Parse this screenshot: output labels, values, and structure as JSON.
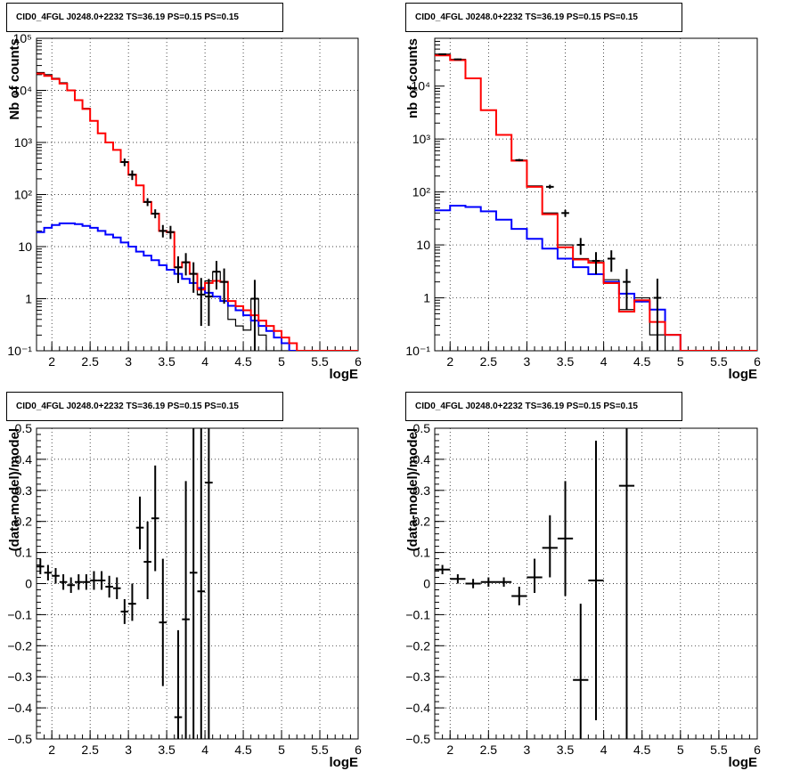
{
  "chart_data": [
    {
      "type": "line",
      "title": "CID0_4FGL J0248.0+2232 TS=36.19 PS=0.15 PS=0.15",
      "xlabel": "logE",
      "ylabel": "Nb of counts",
      "xlim": [
        1.8,
        6.0
      ],
      "ylim": [
        0.1,
        100000
      ],
      "yscale": "log",
      "grid": true,
      "x_ticks": [
        "2",
        "2.5",
        "3",
        "3.5",
        "4",
        "4.5",
        "5",
        "5.5",
        "6"
      ],
      "y_ticks": [
        "10⁻¹",
        "1",
        "10",
        "10²",
        "10³",
        "10⁴",
        "10⁵"
      ],
      "bin_edges": [
        1.8,
        1.9,
        2.0,
        2.1,
        2.2,
        2.3,
        2.4,
        2.5,
        2.6,
        2.7,
        2.8,
        2.9,
        3.0,
        3.1,
        3.2,
        3.3,
        3.4,
        3.5,
        3.6,
        3.7,
        3.8,
        3.9,
        4.0,
        4.1,
        4.2,
        4.3,
        4.4,
        4.5,
        4.6,
        4.7,
        4.8,
        4.9,
        5.0,
        5.1,
        5.2,
        5.3,
        5.4,
        5.5,
        5.6,
        5.7,
        5.8,
        5.9,
        6.0
      ],
      "series": [
        {
          "color": "#000000",
          "style": "histogram",
          "values": [
            22000,
            20000,
            17000,
            14000,
            10000,
            6500,
            4500,
            2600,
            1500,
            1000,
            720,
            420,
            240,
            150,
            72,
            43,
            20,
            19,
            4,
            5,
            3,
            1.2,
            2.2,
            3.3,
            2.1,
            0.4,
            0.3,
            0.25,
            1.0,
            0.2,
            0.1,
            0.1,
            0.1,
            0.1,
            0.1,
            0.1,
            0.1,
            0.1,
            0.1,
            0.1,
            0.1,
            0.1
          ]
        },
        {
          "color": "#0000ff",
          "style": "histogram",
          "values": [
            19,
            23,
            26,
            28,
            28,
            27,
            25,
            23,
            20,
            17,
            15,
            12,
            10,
            8,
            6.7,
            5.5,
            4.4,
            3.6,
            3.0,
            2.4,
            2.0,
            1.6,
            1.3,
            1.1,
            0.9,
            0.73,
            0.6,
            0.48,
            0.38,
            0.3,
            0.24,
            0.18,
            0.14,
            0.1,
            0.1,
            0.1,
            0.1,
            0.1,
            0.1,
            0.1,
            0.1,
            0.1
          ]
        },
        {
          "color": "#ff0000",
          "style": "histogram",
          "values": [
            21000,
            19000,
            16500,
            13500,
            10000,
            6500,
            4400,
            2600,
            1500,
            1000,
            720,
            420,
            240,
            150,
            72,
            43,
            20,
            19,
            4,
            5,
            3,
            1.5,
            2.0,
            2.2,
            2.1,
            0.9,
            0.72,
            0.6,
            0.48,
            0.38,
            0.3,
            0.24,
            0.18,
            0.14,
            0.1,
            0.1,
            0.1,
            0.1,
            0.1,
            0.1,
            0.1,
            0.1
          ]
        }
      ],
      "points": [
        {
          "x": 2.95,
          "y": 420,
          "lo": 350,
          "hi": 490
        },
        {
          "x": 3.05,
          "y": 240,
          "lo": 190,
          "hi": 290
        },
        {
          "x": 3.25,
          "y": 72,
          "lo": 60,
          "hi": 85
        },
        {
          "x": 3.35,
          "y": 43,
          "lo": 35,
          "hi": 52
        },
        {
          "x": 3.45,
          "y": 20,
          "lo": 15,
          "hi": 26
        },
        {
          "x": 3.55,
          "y": 19,
          "lo": 14,
          "hi": 25
        },
        {
          "x": 3.65,
          "y": 4,
          "lo": 2,
          "hi": 6.5
        },
        {
          "x": 3.75,
          "y": 5,
          "lo": 2.8,
          "hi": 7.5
        },
        {
          "x": 3.85,
          "y": 3,
          "lo": 1.3,
          "hi": 5
        },
        {
          "x": 3.95,
          "y": 1.2,
          "lo": 0.3,
          "hi": 2.5
        },
        {
          "x": 4.05,
          "y": 1.1,
          "lo": 0.3,
          "hi": 2.4
        },
        {
          "x": 4.15,
          "y": 3.3,
          "lo": 1.5,
          "hi": 5.3
        },
        {
          "x": 4.25,
          "y": 2.1,
          "lo": 0.8,
          "hi": 3.8
        },
        {
          "x": 4.65,
          "y": 1.0,
          "lo": 0.1,
          "hi": 2.3
        }
      ]
    },
    {
      "type": "line",
      "title": "CID0_4FGL J0248.0+2232 TS=36.19 PS=0.15 PS=0.15",
      "xlabel": "logE",
      "ylabel": "nb of counts",
      "xlim": [
        1.8,
        6.0
      ],
      "ylim": [
        0.1,
        80000
      ],
      "yscale": "log",
      "grid": true,
      "x_ticks": [
        "2",
        "2.5",
        "3",
        "3.5",
        "4",
        "4.5",
        "5",
        "5.5",
        "6"
      ],
      "y_ticks": [
        "10⁻¹",
        "1",
        "10",
        "10²",
        "10³",
        "10⁴"
      ],
      "bin_edges": [
        1.8,
        2.0,
        2.2,
        2.4,
        2.6,
        2.8,
        3.0,
        3.2,
        3.4,
        3.6,
        3.8,
        4.0,
        4.2,
        4.4,
        4.6,
        4.8,
        5.0,
        5.2,
        5.4,
        5.6,
        5.8,
        6.0
      ],
      "series": [
        {
          "color": "#000000",
          "style": "histogram",
          "values": [
            40000,
            32000,
            14000,
            3500,
            1200,
            400,
            130,
            40,
            10,
            5.5,
            5,
            2.2,
            0.6,
            1.0,
            0.2,
            0.1,
            0.1,
            0.1,
            0.1,
            0.1,
            0.1
          ]
        },
        {
          "color": "#0000ff",
          "style": "histogram",
          "values": [
            45,
            55,
            52,
            43,
            30,
            20,
            13,
            8.5,
            5.5,
            3.8,
            2.8,
            2,
            1.2,
            0.85,
            0.6,
            0.2,
            0.1,
            0.1,
            0.1,
            0.1,
            0.1
          ]
        },
        {
          "color": "#ff0000",
          "style": "histogram",
          "values": [
            38000,
            31000,
            14000,
            3500,
            1200,
            390,
            125,
            38,
            9,
            5.3,
            4.6,
            1.9,
            0.55,
            0.9,
            0.35,
            0.2,
            0.1,
            0.1,
            0.1,
            0.1,
            0.1
          ]
        }
      ],
      "points": [
        {
          "x": 1.9,
          "y": 40000,
          "lo": 39000,
          "hi": 41000
        },
        {
          "x": 2.1,
          "y": 32000,
          "lo": 31000,
          "hi": 33000
        },
        {
          "x": 2.9,
          "y": 400,
          "lo": 380,
          "hi": 420
        },
        {
          "x": 3.3,
          "y": 125,
          "lo": 115,
          "hi": 137
        },
        {
          "x": 3.5,
          "y": 40,
          "lo": 34,
          "hi": 46
        },
        {
          "x": 3.7,
          "y": 10,
          "lo": 6.5,
          "hi": 13.5
        },
        {
          "x": 3.9,
          "y": 5,
          "lo": 2.8,
          "hi": 7.3
        },
        {
          "x": 4.1,
          "y": 5.5,
          "lo": 3.1,
          "hi": 7.9
        },
        {
          "x": 4.3,
          "y": 2,
          "lo": 0.6,
          "hi": 3.5
        },
        {
          "x": 4.7,
          "y": 1.0,
          "lo": 0.1,
          "hi": 2.3
        }
      ]
    },
    {
      "type": "scatter",
      "title": "CID0_4FGL J0248.0+2232 TS=36.19 PS=0.15 PS=0.15",
      "xlabel": "logE",
      "ylabel": "(data-model)/model",
      "xlim": [
        1.8,
        6.0
      ],
      "ylim": [
        -0.5,
        0.5
      ],
      "grid": true,
      "x_ticks": [
        "2",
        "2.5",
        "3",
        "3.5",
        "4",
        "4.5",
        "5",
        "5.5",
        "6"
      ],
      "y_ticks": [
        "−0.5",
        "−0.4",
        "−0.3",
        "−0.2",
        "−0.1",
        "0",
        "0.1",
        "0.2",
        "0.3",
        "0.4",
        "0.5"
      ],
      "x_err_half": 0.05,
      "points": [
        {
          "x": 1.85,
          "y": 0.055,
          "lo": 0.03,
          "hi": 0.08
        },
        {
          "x": 1.95,
          "y": 0.035,
          "lo": 0.01,
          "hi": 0.06
        },
        {
          "x": 2.05,
          "y": 0.025,
          "lo": 0.0,
          "hi": 0.05
        },
        {
          "x": 2.15,
          "y": 0.005,
          "lo": -0.02,
          "hi": 0.03
        },
        {
          "x": 2.25,
          "y": -0.005,
          "lo": -0.03,
          "hi": 0.02
        },
        {
          "x": 2.35,
          "y": 0.005,
          "lo": -0.02,
          "hi": 0.03
        },
        {
          "x": 2.45,
          "y": 0.005,
          "lo": -0.02,
          "hi": 0.03
        },
        {
          "x": 2.55,
          "y": 0.01,
          "lo": -0.02,
          "hi": 0.04
        },
        {
          "x": 2.65,
          "y": 0.01,
          "lo": -0.02,
          "hi": 0.04
        },
        {
          "x": 2.75,
          "y": -0.01,
          "lo": -0.045,
          "hi": 0.025
        },
        {
          "x": 2.85,
          "y": -0.015,
          "lo": -0.05,
          "hi": 0.02
        },
        {
          "x": 2.95,
          "y": -0.09,
          "lo": -0.13,
          "hi": -0.05
        },
        {
          "x": 3.05,
          "y": -0.065,
          "lo": -0.12,
          "hi": 0.0
        },
        {
          "x": 3.15,
          "y": 0.18,
          "lo": 0.11,
          "hi": 0.28
        },
        {
          "x": 3.25,
          "y": 0.07,
          "lo": -0.05,
          "hi": 0.2
        },
        {
          "x": 3.35,
          "y": 0.21,
          "lo": 0.04,
          "hi": 0.38
        },
        {
          "x": 3.45,
          "y": -0.125,
          "lo": -0.33,
          "hi": 0.08
        },
        {
          "x": 3.65,
          "y": -0.43,
          "lo": -0.5,
          "hi": -0.15
        },
        {
          "x": 3.75,
          "y": -0.115,
          "lo": -0.5,
          "hi": 0.33
        },
        {
          "x": 3.85,
          "y": 0.035,
          "lo": -0.5,
          "hi": 0.5
        },
        {
          "x": 3.95,
          "y": -0.025,
          "lo": -0.5,
          "hi": 0.5
        },
        {
          "x": 4.05,
          "y": 0.325,
          "lo": -0.5,
          "hi": 0.5
        }
      ]
    },
    {
      "type": "scatter",
      "title": "CID0_4FGL J0248.0+2232 TS=36.19 PS=0.15 PS=0.15",
      "xlabel": "logE",
      "ylabel": "(data-model)/model",
      "xlim": [
        1.8,
        6.0
      ],
      "ylim": [
        -0.5,
        0.5
      ],
      "grid": true,
      "x_ticks": [
        "2",
        "2.5",
        "3",
        "3.5",
        "4",
        "4.5",
        "5",
        "5.5",
        "6"
      ],
      "y_ticks": [
        "−0.5",
        "−0.4",
        "−0.3",
        "−0.2",
        "−0.1",
        "0",
        "0.1",
        "0.2",
        "0.3",
        "0.4",
        "0.5"
      ],
      "x_err_half": 0.1,
      "points": [
        {
          "x": 1.9,
          "y": 0.045,
          "lo": 0.03,
          "hi": 0.06
        },
        {
          "x": 2.1,
          "y": 0.015,
          "lo": 0.0,
          "hi": 0.03
        },
        {
          "x": 2.3,
          "y": 0.0,
          "lo": -0.015,
          "hi": 0.015
        },
        {
          "x": 2.5,
          "y": 0.005,
          "lo": -0.01,
          "hi": 0.02
        },
        {
          "x": 2.7,
          "y": 0.005,
          "lo": -0.01,
          "hi": 0.02
        },
        {
          "x": 2.9,
          "y": -0.04,
          "lo": -0.07,
          "hi": -0.01
        },
        {
          "x": 3.1,
          "y": 0.02,
          "lo": -0.03,
          "hi": 0.08
        },
        {
          "x": 3.3,
          "y": 0.115,
          "lo": 0.02,
          "hi": 0.22
        },
        {
          "x": 3.5,
          "y": 0.145,
          "lo": -0.04,
          "hi": 0.33
        },
        {
          "x": 3.7,
          "y": -0.31,
          "lo": -0.5,
          "hi": -0.065
        },
        {
          "x": 3.9,
          "y": 0.01,
          "lo": -0.44,
          "hi": 0.46
        },
        {
          "x": 4.3,
          "y": 0.315,
          "lo": -0.5,
          "hi": 0.5
        }
      ]
    }
  ]
}
